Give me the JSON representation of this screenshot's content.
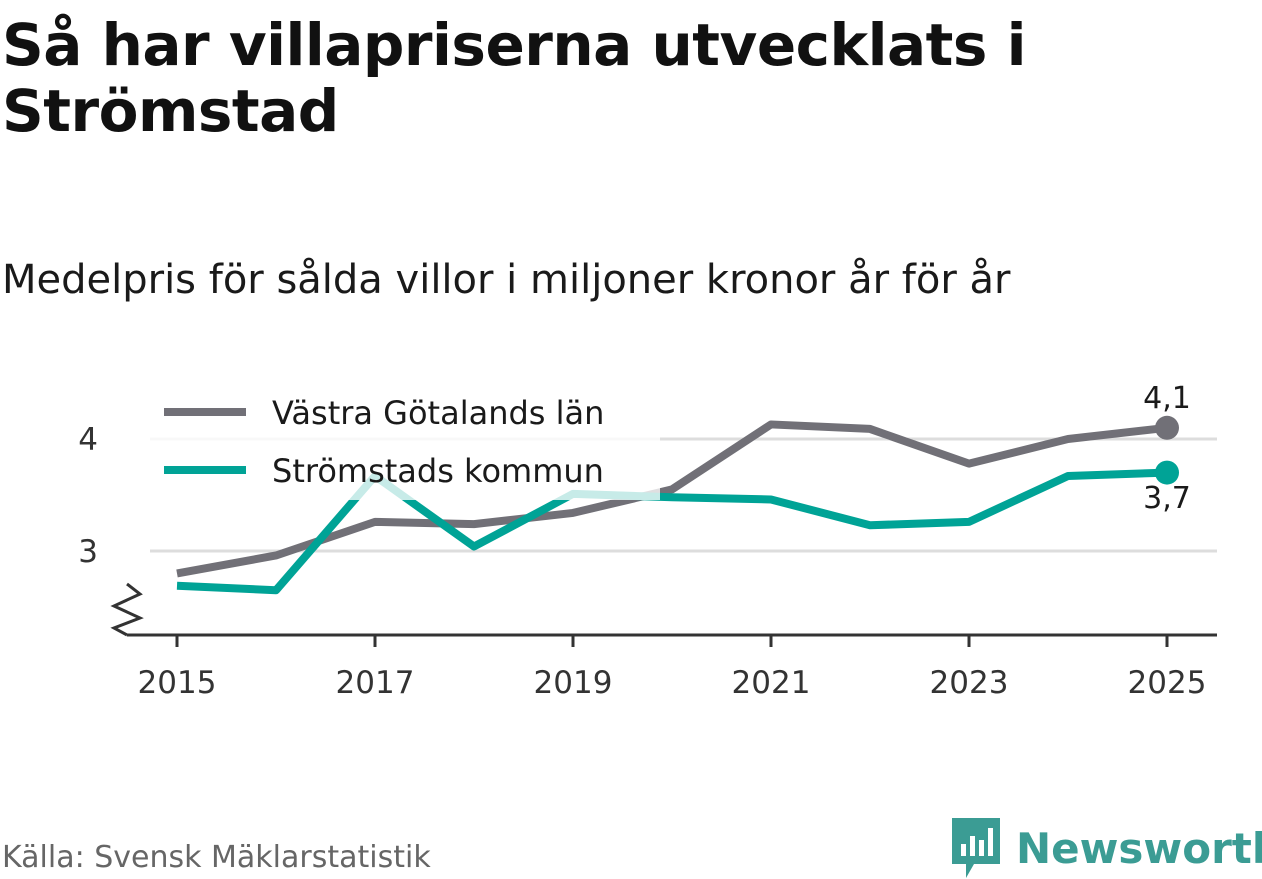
{
  "title": "Så har villapriserna utvecklats i Strömstad",
  "subtitle": "Medelpris för sålda villor i miljoner kronor år för år",
  "source": "Källa: Svensk Mäklarstatistik",
  "brand": "Newsworthy",
  "colors": {
    "vastra": "#717077",
    "stromstad": "#00a396",
    "grid": "#dddddd",
    "axis": "#333333",
    "brand": "#3b9c94"
  },
  "chart_data": {
    "type": "line",
    "title": "Så har villapriserna utvecklats i Strömstad",
    "subtitle": "Medelpris för sålda villor i miljoner kronor år för år",
    "xlabel": "",
    "ylabel": "",
    "x": [
      2015,
      2016,
      2017,
      2018,
      2019,
      2020,
      2021,
      2022,
      2023,
      2024,
      2025
    ],
    "xticks": [
      "2015",
      "2017",
      "2019",
      "2021",
      "2023",
      "2025"
    ],
    "yticks": [
      "3",
      "4"
    ],
    "ylim": [
      2.25,
      4.25
    ],
    "grid": true,
    "axis_break": true,
    "legend_position": "top-left",
    "series": [
      {
        "name": "Västra Götalands län",
        "values": [
          2.8,
          2.96,
          3.26,
          3.24,
          3.34,
          3.55,
          4.13,
          4.09,
          3.78,
          4.0,
          4.1
        ],
        "end_label": "4,1"
      },
      {
        "name": "Strömstads kommun",
        "values": [
          2.69,
          2.65,
          3.67,
          3.04,
          3.51,
          3.48,
          3.46,
          3.23,
          3.26,
          3.67,
          3.7
        ],
        "end_label": "3,7"
      }
    ]
  }
}
